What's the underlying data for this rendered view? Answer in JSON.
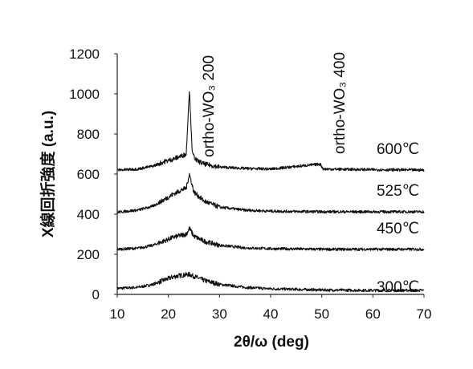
{
  "chart_data": {
    "type": "line",
    "title": "",
    "xlabel": "2θ/ω (deg)",
    "ylabel": "X線回折強度 (a.u.)",
    "xlim": [
      10,
      70
    ],
    "ylim": [
      0,
      1200
    ],
    "xticks": [
      "10",
      "20",
      "30",
      "40",
      "50",
      "60",
      "70"
    ],
    "yticks": [
      "0",
      "200",
      "400",
      "600",
      "800",
      "1000",
      "1200"
    ],
    "grid": false,
    "legend": "none",
    "annotations": [
      {
        "text": "ortho-WO₃ 200",
        "x": 24.1
      },
      {
        "text": "ortho-WO₃ 400",
        "x": 49.7
      }
    ],
    "series": [
      {
        "name": "300℃",
        "x": [
          10,
          14,
          17,
          19,
          21,
          22.5,
          23.5,
          24.1,
          25,
          27,
          30,
          35,
          40,
          50,
          60,
          70
        ],
        "y": [
          30,
          35,
          50,
          70,
          88,
          95,
          98,
          100,
          90,
          70,
          50,
          35,
          28,
          22,
          20,
          20
        ]
      },
      {
        "name": "450℃",
        "x": [
          10,
          14,
          17,
          19,
          21,
          22.5,
          23.5,
          24.1,
          25,
          27,
          30,
          35,
          40,
          50,
          60,
          70
        ],
        "y": [
          225,
          230,
          245,
          265,
          285,
          295,
          300,
          330,
          290,
          265,
          245,
          232,
          228,
          225,
          225,
          225
        ]
      },
      {
        "name": "525℃",
        "x": [
          10,
          14,
          17,
          19,
          21,
          22.5,
          23.5,
          24.1,
          25,
          27,
          30,
          35,
          40,
          50,
          60,
          70
        ],
        "y": [
          410,
          420,
          440,
          470,
          500,
          520,
          530,
          600,
          510,
          465,
          435,
          420,
          415,
          412,
          412,
          412
        ]
      },
      {
        "name": "600℃",
        "x": [
          10,
          14,
          17,
          19,
          21,
          22.5,
          23.5,
          24.1,
          24.7,
          25.5,
          27,
          30,
          35,
          40,
          49.7,
          50.3,
          60,
          70
        ],
        "y": [
          620,
          625,
          640,
          660,
          675,
          690,
          700,
          1020,
          700,
          668,
          650,
          635,
          628,
          625,
          650,
          625,
          622,
          620
        ]
      }
    ]
  }
}
